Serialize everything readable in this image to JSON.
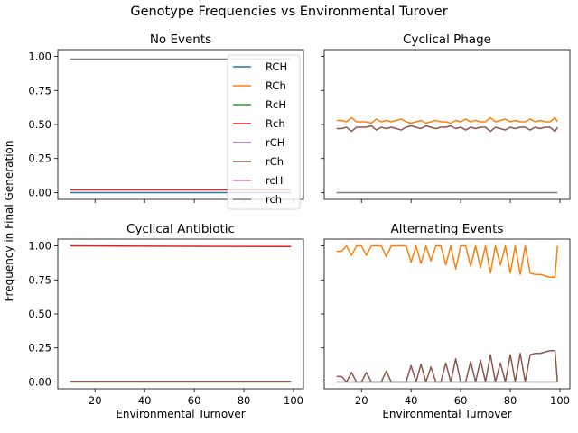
{
  "figure_title": "Genotype Frequencies vs Environmental Turover",
  "shared_ylabel": "Frequency in Final Generation",
  "legend_entries": [
    {
      "label": "RCH",
      "color": "#1f77b4"
    },
    {
      "label": "RCh",
      "color": "#ff7f0e"
    },
    {
      "label": "RcH",
      "color": "#2ca02c"
    },
    {
      "label": "Rch",
      "color": "#d62728"
    },
    {
      "label": "rCH",
      "color": "#9467bd"
    },
    {
      "label": "rCh",
      "color": "#8c564b"
    },
    {
      "label": "rcH",
      "color": "#e377c2"
    },
    {
      "label": "rch",
      "color": "#7f7f7f"
    }
  ],
  "chart_data": [
    {
      "type": "line",
      "title": "No Events",
      "xlabel": "",
      "ylabel": "Frequency in Final Generation",
      "xlim": [
        5,
        104
      ],
      "ylim": [
        -0.05,
        1.05
      ],
      "xticks": [
        20,
        40,
        60,
        80,
        100
      ],
      "yticks": [
        "0.00",
        "0.25",
        "0.50",
        "0.75",
        "1.00"
      ],
      "show_xticklabels": false,
      "show_yticklabels": true,
      "legend": "upper-right",
      "series": [
        {
          "name": "Rch",
          "color": "#d62728",
          "x": [
            10,
            99
          ],
          "y": [
            0.02,
            0.02
          ]
        },
        {
          "name": "rch",
          "color": "#7f7f7f",
          "x": [
            10,
            99
          ],
          "y": [
            0.98,
            0.98
          ]
        },
        {
          "name": "RCH",
          "color": "#1f77b4",
          "x": [
            10,
            99
          ],
          "y": [
            0.0,
            0.0
          ]
        }
      ]
    },
    {
      "type": "line",
      "title": "Cyclical Phage",
      "xlabel": "",
      "ylabel": "",
      "xlim": [
        5,
        104
      ],
      "ylim": [
        -0.05,
        1.05
      ],
      "xticks": [
        20,
        40,
        60,
        80,
        100
      ],
      "yticks": [
        "0.00",
        "0.25",
        "0.50",
        "0.75",
        "1.00"
      ],
      "show_xticklabels": false,
      "show_yticklabels": false,
      "series": [
        {
          "name": "RCh",
          "color": "#ff7f0e",
          "x": [
            10,
            12,
            14,
            16,
            18,
            20,
            22,
            24,
            26,
            28,
            30,
            32,
            34,
            36,
            38,
            40,
            42,
            44,
            46,
            48,
            50,
            52,
            54,
            56,
            58,
            60,
            62,
            64,
            66,
            68,
            70,
            72,
            74,
            76,
            78,
            80,
            82,
            84,
            86,
            88,
            90,
            92,
            94,
            96,
            98,
            99
          ],
          "y": [
            0.53,
            0.53,
            0.52,
            0.55,
            0.52,
            0.52,
            0.52,
            0.51,
            0.54,
            0.52,
            0.53,
            0.52,
            0.53,
            0.54,
            0.52,
            0.51,
            0.52,
            0.53,
            0.51,
            0.52,
            0.53,
            0.52,
            0.52,
            0.51,
            0.53,
            0.52,
            0.54,
            0.52,
            0.53,
            0.52,
            0.52,
            0.55,
            0.52,
            0.53,
            0.54,
            0.52,
            0.53,
            0.52,
            0.52,
            0.54,
            0.52,
            0.53,
            0.52,
            0.52,
            0.55,
            0.52
          ]
        },
        {
          "name": "rCh",
          "color": "#8c564b",
          "x": [
            10,
            12,
            14,
            16,
            18,
            20,
            22,
            24,
            26,
            28,
            30,
            32,
            34,
            36,
            38,
            40,
            42,
            44,
            46,
            48,
            50,
            52,
            54,
            56,
            58,
            60,
            62,
            64,
            66,
            68,
            70,
            72,
            74,
            76,
            78,
            80,
            82,
            84,
            86,
            88,
            90,
            92,
            94,
            96,
            98,
            99
          ],
          "y": [
            0.47,
            0.47,
            0.48,
            0.45,
            0.48,
            0.48,
            0.48,
            0.49,
            0.46,
            0.48,
            0.47,
            0.48,
            0.47,
            0.46,
            0.48,
            0.49,
            0.48,
            0.47,
            0.49,
            0.48,
            0.47,
            0.48,
            0.48,
            0.49,
            0.47,
            0.48,
            0.46,
            0.48,
            0.47,
            0.48,
            0.48,
            0.45,
            0.48,
            0.47,
            0.46,
            0.48,
            0.47,
            0.48,
            0.48,
            0.46,
            0.48,
            0.47,
            0.48,
            0.48,
            0.45,
            0.48
          ]
        },
        {
          "name": "rch",
          "color": "#7f7f7f",
          "x": [
            10,
            99
          ],
          "y": [
            0.0,
            0.0
          ]
        }
      ]
    },
    {
      "type": "line",
      "title": "Cyclical Antibiotic",
      "xlabel": "Environmental Turnover",
      "ylabel": "Frequency in Final Generation",
      "xlim": [
        5,
        104
      ],
      "ylim": [
        -0.05,
        1.05
      ],
      "xticks": [
        20,
        40,
        60,
        80,
        100
      ],
      "yticks": [
        "0.00",
        "0.25",
        "0.50",
        "0.75",
        "1.00"
      ],
      "show_xticklabels": true,
      "show_yticklabels": true,
      "series": [
        {
          "name": "Rch",
          "color": "#d62728",
          "x": [
            10,
            99
          ],
          "y": [
            1.0,
            0.995
          ]
        },
        {
          "name": "rch",
          "color": "#7f7f7f",
          "x": [
            10,
            99
          ],
          "y": [
            0.0,
            0.0
          ]
        },
        {
          "name": "rCh",
          "color": "#8c564b",
          "x": [
            10,
            99
          ],
          "y": [
            0.005,
            0.005
          ]
        }
      ]
    },
    {
      "type": "line",
      "title": "Alternating Events",
      "xlabel": "Environmental Turnover",
      "ylabel": "",
      "xlim": [
        5,
        104
      ],
      "ylim": [
        -0.05,
        1.05
      ],
      "xticks": [
        20,
        40,
        60,
        80,
        100
      ],
      "yticks": [
        "0.00",
        "0.25",
        "0.50",
        "0.75",
        "1.00"
      ],
      "show_xticklabels": true,
      "show_yticklabels": false,
      "series": [
        {
          "name": "RCh",
          "color": "#ff7f0e",
          "x": [
            10,
            12,
            14,
            16,
            18,
            20,
            22,
            24,
            26,
            28,
            30,
            32,
            34,
            36,
            38,
            40,
            42,
            44,
            46,
            48,
            50,
            52,
            54,
            56,
            58,
            60,
            62,
            64,
            66,
            68,
            70,
            72,
            74,
            76,
            78,
            80,
            82,
            84,
            86,
            88,
            90,
            92,
            94,
            96,
            98,
            99
          ],
          "y": [
            0.96,
            0.96,
            1.0,
            0.93,
            1.0,
            1.0,
            0.93,
            1.0,
            1.0,
            1.0,
            0.92,
            1.0,
            1.0,
            1.0,
            1.0,
            0.88,
            1.0,
            0.87,
            1.0,
            0.89,
            1.0,
            1.0,
            0.86,
            1.0,
            0.83,
            1.0,
            1.0,
            0.85,
            1.0,
            0.84,
            1.0,
            0.8,
            1.0,
            0.86,
            1.0,
            0.8,
            1.0,
            0.79,
            1.0,
            0.8,
            0.79,
            0.79,
            0.78,
            0.77,
            0.77,
            1.0
          ]
        },
        {
          "name": "rCh",
          "color": "#8c564b",
          "x": [
            10,
            12,
            14,
            16,
            18,
            20,
            22,
            24,
            26,
            28,
            30,
            32,
            34,
            36,
            38,
            40,
            42,
            44,
            46,
            48,
            50,
            52,
            54,
            56,
            58,
            60,
            62,
            64,
            66,
            68,
            70,
            72,
            74,
            76,
            78,
            80,
            82,
            84,
            86,
            88,
            90,
            92,
            94,
            96,
            98,
            99
          ],
          "y": [
            0.04,
            0.04,
            0.0,
            0.07,
            0.0,
            0.0,
            0.07,
            0.0,
            0.0,
            0.0,
            0.08,
            0.0,
            0.0,
            0.0,
            0.0,
            0.12,
            0.0,
            0.13,
            0.0,
            0.11,
            0.0,
            0.0,
            0.14,
            0.0,
            0.17,
            0.0,
            0.0,
            0.15,
            0.0,
            0.16,
            0.0,
            0.2,
            0.0,
            0.14,
            0.0,
            0.2,
            0.0,
            0.21,
            0.0,
            0.2,
            0.21,
            0.21,
            0.22,
            0.23,
            0.23,
            0.0
          ]
        },
        {
          "name": "rch",
          "color": "#7f7f7f",
          "x": [
            10,
            99
          ],
          "y": [
            0.0,
            0.0
          ]
        }
      ]
    }
  ]
}
